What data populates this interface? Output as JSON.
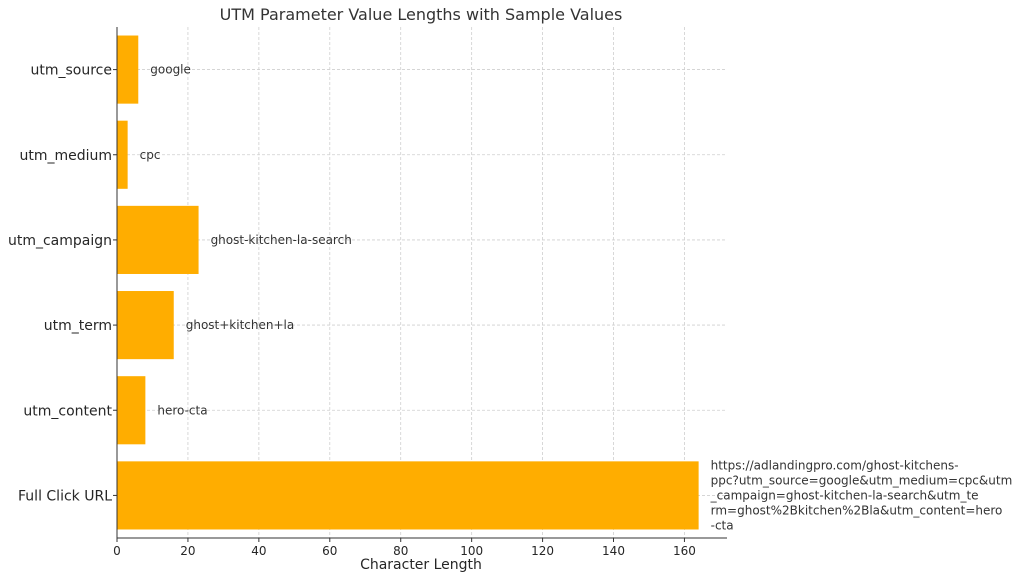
{
  "chart_data": {
    "type": "bar",
    "orientation": "horizontal",
    "title": "UTM Parameter Value Lengths with Sample Values",
    "xlabel": "Character Length",
    "ylabel": "",
    "xlim": [
      0,
      172
    ],
    "xticks": [
      0,
      20,
      40,
      60,
      80,
      100,
      120,
      140,
      160
    ],
    "grid": true,
    "bar_color": "#ffad00",
    "categories": [
      "utm_source",
      "utm_medium",
      "utm_campaign",
      "utm_term",
      "utm_content",
      "Full Click URL"
    ],
    "values": [
      6,
      3,
      23,
      16,
      8,
      164
    ],
    "bar_labels": [
      [
        "google"
      ],
      [
        "cpc"
      ],
      [
        "ghost-kitchen-la-search"
      ],
      [
        "ghost+kitchen+la"
      ],
      [
        "hero-cta"
      ],
      [
        "https://adlandingpro.com/ghost-kitchens-",
        "ppc?utm_source=google&utm_medium=cpc&utm",
        "_campaign=ghost-kitchen-la-search&utm_te",
        "rm=ghost%2Bkitchen%2Bla&utm_content=hero",
        "-cta"
      ]
    ]
  }
}
